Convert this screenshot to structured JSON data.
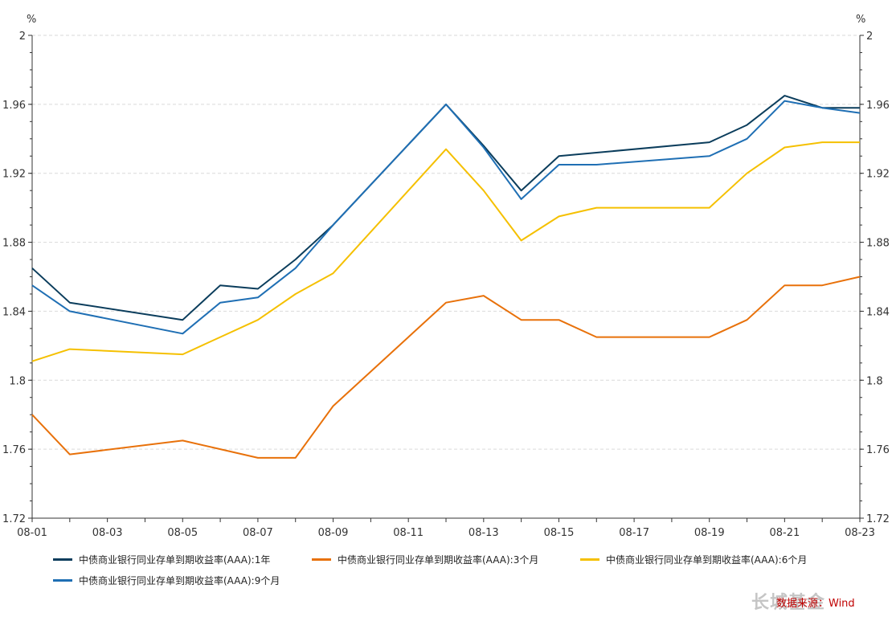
{
  "chart_data": {
    "type": "line",
    "y_unit_left": "%",
    "y_unit_right": "%",
    "ylim": [
      1.72,
      2
    ],
    "yticks": [
      "1.72",
      "1.76",
      "1.8",
      "1.84",
      "1.88",
      "1.92",
      "1.96",
      "2"
    ],
    "ytick_values": [
      1.72,
      1.76,
      1.8,
      1.84,
      1.88,
      1.92,
      1.96,
      2.0
    ],
    "x": [
      "08-01",
      "08-02",
      "08-05",
      "08-06",
      "08-07",
      "08-08",
      "08-09",
      "08-12",
      "08-13",
      "08-14",
      "08-15",
      "08-16",
      "08-19",
      "08-20",
      "08-21",
      "08-22",
      "08-23"
    ],
    "x_days": [
      1,
      2,
      5,
      6,
      7,
      8,
      9,
      12,
      13,
      14,
      15,
      16,
      19,
      20,
      21,
      22,
      23
    ],
    "xticks": [
      "08-01",
      "08-03",
      "08-05",
      "08-07",
      "08-09",
      "08-11",
      "08-13",
      "08-15",
      "08-17",
      "08-19",
      "08-21",
      "08-23"
    ],
    "xtick_days": [
      1,
      3,
      5,
      7,
      9,
      11,
      13,
      15,
      17,
      19,
      21,
      23
    ],
    "grid": true,
    "legend_position": "bottom",
    "series": [
      {
        "name": "中债商业银行同业存单到期收益率(AAA):1年",
        "color": "#0b3d5c",
        "values": [
          1.865,
          1.845,
          1.835,
          1.855,
          1.853,
          1.87,
          1.89,
          1.96,
          1.936,
          1.91,
          1.93,
          1.932,
          1.938,
          1.948,
          1.965,
          1.958,
          1.958
        ]
      },
      {
        "name": "中债商业银行同业存单到期收益率(AAA):3个月",
        "color": "#e8710a",
        "values": [
          1.78,
          1.757,
          1.765,
          1.76,
          1.755,
          1.755,
          1.785,
          1.845,
          1.849,
          1.835,
          1.835,
          1.825,
          1.825,
          1.835,
          1.855,
          1.855,
          1.86
        ]
      },
      {
        "name": "中债商业银行同业存单到期收益率(AAA):6个月",
        "color": "#f5c000",
        "values": [
          1.811,
          1.818,
          1.815,
          1.825,
          1.835,
          1.85,
          1.862,
          1.934,
          1.91,
          1.881,
          1.895,
          1.9,
          1.9,
          1.92,
          1.935,
          1.938,
          1.938
        ]
      },
      {
        "name": "中债商业银行同业存单到期收益率(AAA):9个月",
        "color": "#1f6fb4",
        "values": [
          1.855,
          1.84,
          1.827,
          1.845,
          1.848,
          1.865,
          1.89,
          1.96,
          1.935,
          1.905,
          1.925,
          1.925,
          1.93,
          1.94,
          1.962,
          1.958,
          1.955
        ]
      }
    ]
  },
  "source_label": "数据来源：Wind",
  "watermark": "长城基金"
}
